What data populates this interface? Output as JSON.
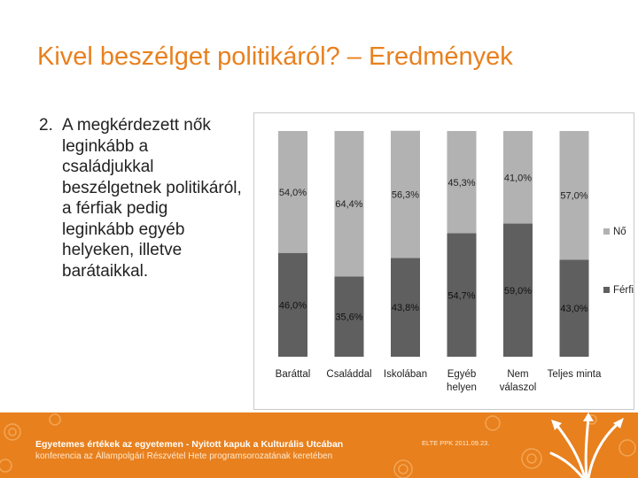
{
  "slide": {
    "title": "Kivel beszélget politikáról? – Eredmények",
    "bullet_number": "2.",
    "bullet_text": "A megkérdezett nők leginkább a családjukkal beszélgetnek politikáról, a férfiak pedig leginkább egyéb helyeken, illetve barátaikkal."
  },
  "footer": {
    "line1": "Egyetemes értékek az egyetemen - Nyitott kapuk a Kulturális Utcában",
    "line2": "konferencia az Állampolgári Részvétel Hete programsorozatának keretében",
    "date": "ELTE PPK 2011.09.23."
  },
  "colors": {
    "accent": "#e8801e",
    "female": "#b2b2b2",
    "male": "#5f5f5f"
  },
  "chart_data": {
    "type": "bar",
    "stacked": true,
    "categories": [
      "Baráttal",
      "Családdal",
      "Iskolában",
      "Egyéb helyen",
      "Nem válaszol",
      "Teljes minta"
    ],
    "category_labels": [
      [
        "Baráttal"
      ],
      [
        "Családdal"
      ],
      [
        "Iskolában"
      ],
      [
        "Egyéb",
        "helyen"
      ],
      [
        "Nem",
        "válaszol"
      ],
      [
        "Teljes minta"
      ]
    ],
    "series": [
      {
        "name": "Férfi",
        "color": "#5f5f5f",
        "values": [
          46.0,
          35.6,
          43.8,
          54.7,
          59.0,
          43.0
        ],
        "labels": [
          "46,0%",
          "35,6%",
          "43,8%",
          "54,7%",
          "59,0%",
          "43,0%"
        ]
      },
      {
        "name": "Nő",
        "color": "#b2b2b2",
        "values": [
          54.0,
          64.4,
          56.3,
          45.3,
          41.0,
          57.0
        ],
        "labels": [
          "54,0%",
          "64,4%",
          "56,3%",
          "45,3%",
          "41,0%",
          "57,0%"
        ]
      }
    ],
    "legend": [
      "Nő",
      "Férfi"
    ],
    "legend_position": "right",
    "ylim": [
      0,
      100
    ],
    "grid": false
  }
}
